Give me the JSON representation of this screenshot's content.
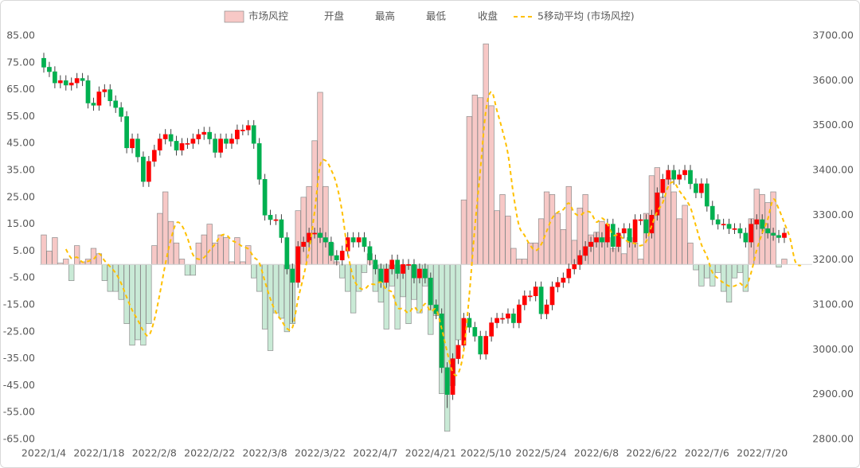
{
  "chart_data": {
    "type": "bar-candlestick",
    "categories": [
      "2022/1/4",
      null,
      null,
      null,
      null,
      null,
      null,
      null,
      null,
      null,
      "2022/1/18",
      null,
      null,
      null,
      null,
      null,
      null,
      null,
      null,
      null,
      "2022/2/8",
      null,
      null,
      null,
      null,
      null,
      null,
      null,
      null,
      null,
      "2022/2/22",
      null,
      null,
      null,
      null,
      null,
      null,
      null,
      null,
      null,
      "2022/3/8",
      null,
      null,
      null,
      null,
      null,
      null,
      null,
      null,
      null,
      "2022/3/22",
      null,
      null,
      null,
      null,
      null,
      null,
      null,
      null,
      null,
      "2022/4/7",
      null,
      null,
      null,
      null,
      null,
      null,
      null,
      null,
      null,
      "2022/4/21",
      null,
      null,
      null,
      null,
      null,
      null,
      null,
      null,
      null,
      "2022/5/10",
      null,
      null,
      null,
      null,
      null,
      null,
      null,
      null,
      null,
      "2022/5/24",
      null,
      null,
      null,
      null,
      null,
      null,
      null,
      null,
      null,
      "2022/6/8",
      null,
      null,
      null,
      null,
      null,
      null,
      null,
      null,
      null,
      "2022/6/22",
      null,
      null,
      null,
      null,
      null,
      null,
      null,
      null,
      null,
      "2022/7/6",
      null,
      null,
      null,
      null,
      null,
      null,
      null,
      null,
      null,
      "2022/7/20",
      null,
      null,
      null,
      null,
      null,
      null,
      null
    ],
    "series": [
      {
        "name": "市场风控",
        "type": "bar",
        "color": "#f7c8c6",
        "negative_color": "#c9ead6",
        "values": [
          11,
          5,
          10,
          0.5,
          2,
          -6,
          7,
          1,
          2,
          6,
          4,
          -6,
          -10,
          -10,
          -13,
          -22,
          -30,
          -28,
          -30,
          -22,
          7,
          19,
          27,
          16,
          8,
          2,
          -4,
          -4,
          8,
          11,
          15,
          8,
          11,
          10,
          1,
          10,
          1,
          7,
          -5,
          -10,
          -24,
          -32,
          -18,
          -20,
          -25,
          -22,
          20,
          25,
          29,
          46,
          64,
          29,
          8,
          1,
          -5,
          -10,
          -18,
          -10,
          -3,
          4,
          -10,
          -14,
          -24,
          -8,
          -24,
          -12,
          -22,
          -13,
          -18,
          -8,
          -26,
          -19,
          -48,
          -62,
          -45,
          -28,
          24,
          55,
          63,
          62,
          82,
          59,
          20,
          26,
          18,
          6,
          2,
          2,
          8,
          8,
          17,
          27,
          26,
          19,
          13,
          29,
          9,
          21,
          26,
          11,
          12,
          16,
          10,
          6,
          11,
          4,
          10,
          8,
          2,
          19,
          33,
          36,
          25,
          32,
          27,
          17,
          22,
          8,
          -2,
          -8,
          -5,
          -8,
          -3,
          -10,
          -14,
          -5,
          -3,
          -10,
          17,
          28,
          26,
          23,
          27,
          -1,
          2,
          null,
          null,
          null
        ]
      },
      {
        "name": "开盘",
        "axis": "y2",
        "values": [
          3650,
          3630,
          3620,
          3595,
          3600,
          3590,
          3595,
          3605,
          3600,
          3550,
          3545,
          3575,
          3580,
          3555,
          3540,
          3520,
          3450,
          3470,
          3430,
          3375,
          3420,
          3445,
          3470,
          3480,
          3465,
          3445,
          3460,
          3460,
          3470,
          3480,
          3485,
          3470,
          3440,
          3470,
          3460,
          3470,
          3490,
          3490,
          3500,
          3460,
          3380,
          3300,
          3290,
          3290,
          3250,
          3180,
          3150,
          3230,
          3240,
          3260,
          3260,
          3250,
          3240,
          3210,
          3200,
          3220,
          3250,
          3240,
          3250,
          3230,
          3200,
          3180,
          3150,
          3180,
          3200,
          3170,
          3190,
          3190,
          3160,
          3180,
          3160,
          3100,
          3080,
          2960,
          2900,
          2980,
          3010,
          3070,
          3050,
          3030,
          2990,
          3030,
          3060,
          3070,
          3070,
          3080,
          3060,
          3100,
          3120,
          3120,
          3140,
          3080,
          3100,
          3140,
          3150,
          3160,
          3180,
          3190,
          3210,
          3230,
          3240,
          3250,
          3240,
          3280,
          3230,
          3260,
          3270,
          3240,
          3290,
          3290,
          3260,
          3300,
          3350,
          3380,
          3400,
          3380,
          3390,
          3400,
          3370,
          3350,
          3370,
          3320,
          3290,
          3280,
          3280,
          3270,
          3270,
          3260,
          3240,
          3280,
          3290,
          3270,
          3260,
          3255,
          3250,
          null,
          null,
          null
        ]
      },
      {
        "name": "最高",
        "axis": "y2",
        "values": [
          3662,
          3642,
          3632,
          3612,
          3612,
          3607,
          3617,
          3617,
          3612,
          3562,
          3587,
          3592,
          3592,
          3567,
          3552,
          3532,
          3482,
          3482,
          3442,
          3432,
          3457,
          3482,
          3492,
          3492,
          3477,
          3472,
          3472,
          3482,
          3492,
          3497,
          3497,
          3482,
          3482,
          3482,
          3482,
          3502,
          3502,
          3512,
          3512,
          3472,
          3392,
          3312,
          3302,
          3302,
          3262,
          3192,
          3242,
          3252,
          3272,
          3272,
          3272,
          3262,
          3252,
          3222,
          3232,
          3262,
          3262,
          3262,
          3262,
          3242,
          3212,
          3192,
          3192,
          3212,
          3212,
          3202,
          3202,
          3202,
          3192,
          3192,
          3172,
          3112,
          3092,
          2972,
          2992,
          3022,
          3082,
          3082,
          3062,
          3042,
          3042,
          3072,
          3082,
          3082,
          3092,
          3092,
          3112,
          3132,
          3132,
          3152,
          3152,
          3112,
          3152,
          3162,
          3172,
          3192,
          3202,
          3222,
          3242,
          3252,
          3262,
          3262,
          3292,
          3292,
          3272,
          3282,
          3282,
          3302,
          3302,
          3302,
          3312,
          3362,
          3392,
          3412,
          3412,
          3402,
          3412,
          3412,
          3382,
          3382,
          3382,
          3332,
          3302,
          3292,
          3292,
          3282,
          3282,
          3272,
          3292,
          3302,
          3302,
          3282,
          3272,
          3267,
          3272,
          null,
          null,
          null
        ]
      },
      {
        "name": "最低",
        "axis": "y2",
        "values": [
          3618,
          3608,
          3583,
          3583,
          3578,
          3578,
          3583,
          3588,
          3538,
          3533,
          3533,
          3563,
          3543,
          3528,
          3508,
          3438,
          3438,
          3418,
          3363,
          3363,
          3408,
          3433,
          3458,
          3453,
          3433,
          3433,
          3448,
          3448,
          3458,
          3468,
          3458,
          3428,
          3428,
          3448,
          3448,
          3458,
          3478,
          3478,
          3448,
          3368,
          3288,
          3278,
          3278,
          3238,
          3168,
          3060,
          3138,
          3218,
          3228,
          3248,
          3238,
          3228,
          3198,
          3188,
          3188,
          3208,
          3228,
          3228,
          3218,
          3188,
          3168,
          3138,
          3138,
          3168,
          3158,
          3158,
          3178,
          3148,
          3148,
          3148,
          3088,
          3068,
          2948,
          2870,
          2888,
          2968,
          2998,
          3038,
          3018,
          2978,
          2978,
          3018,
          3048,
          3058,
          3058,
          3048,
          3048,
          3088,
          3108,
          3108,
          3068,
          3068,
          3088,
          3128,
          3138,
          3148,
          3168,
          3178,
          3198,
          3218,
          3228,
          3228,
          3228,
          3218,
          3218,
          3248,
          3228,
          3228,
          3278,
          3248,
          3248,
          3288,
          3338,
          3368,
          3368,
          3368,
          3378,
          3358,
          3338,
          3338,
          3308,
          3278,
          3268,
          3268,
          3258,
          3258,
          3248,
          3228,
          3228,
          3268,
          3258,
          3248,
          3243,
          3238,
          3238,
          null,
          null,
          null
        ]
      },
      {
        "name": "收盘",
        "axis": "y2",
        "values": [
          3630,
          3620,
          3595,
          3600,
          3590,
          3595,
          3605,
          3600,
          3550,
          3545,
          3575,
          3580,
          3555,
          3540,
          3520,
          3450,
          3470,
          3430,
          3375,
          3420,
          3445,
          3470,
          3480,
          3465,
          3445,
          3460,
          3460,
          3470,
          3480,
          3485,
          3470,
          3440,
          3470,
          3460,
          3470,
          3490,
          3490,
          3500,
          3460,
          3380,
          3300,
          3290,
          3290,
          3250,
          3180,
          3150,
          3230,
          3240,
          3260,
          3260,
          3250,
          3240,
          3210,
          3200,
          3220,
          3250,
          3240,
          3250,
          3230,
          3200,
          3180,
          3150,
          3180,
          3200,
          3170,
          3190,
          3190,
          3160,
          3180,
          3160,
          3100,
          3080,
          2960,
          2900,
          2980,
          3010,
          3070,
          3050,
          3030,
          2990,
          3030,
          3060,
          3070,
          3070,
          3080,
          3060,
          3100,
          3120,
          3120,
          3140,
          3080,
          3100,
          3140,
          3150,
          3160,
          3180,
          3190,
          3210,
          3230,
          3240,
          3250,
          3240,
          3280,
          3230,
          3260,
          3270,
          3240,
          3290,
          3290,
          3260,
          3300,
          3350,
          3380,
          3400,
          3380,
          3390,
          3400,
          3370,
          3350,
          3370,
          3320,
          3290,
          3280,
          3280,
          3270,
          3270,
          3260,
          3240,
          3280,
          3290,
          3270,
          3260,
          3255,
          3250,
          3260,
          null,
          null,
          null
        ]
      },
      {
        "name": "5移动平均 (市场风控)",
        "type": "line",
        "color": "#ffc000",
        "line_style": "dashed",
        "values": [
          null,
          null,
          null,
          null,
          5.7,
          2.3,
          2.7,
          0.9,
          1.2,
          2,
          4,
          1.4,
          -0.8,
          -3.2,
          -7,
          -12.2,
          -17,
          -20.6,
          -24.6,
          -26.4,
          -20.6,
          -10.8,
          0.2,
          9.4,
          15.4,
          14.4,
          9.8,
          3.6,
          2,
          2.6,
          5.2,
          7.6,
          10.6,
          11,
          9,
          8,
          6.6,
          5.8,
          2.8,
          0.6,
          -6.2,
          -12.8,
          -17.8,
          -20.8,
          -23.8,
          -23.4,
          -13,
          -4.4,
          5.4,
          19.6,
          36.8,
          38.6,
          35.2,
          29.6,
          19.4,
          4.6,
          -4.8,
          -8.4,
          -9.2,
          -7.4,
          -7.4,
          -6.6,
          -9.4,
          -10.4,
          -16,
          -16.4,
          -18,
          -15.8,
          -17.8,
          -14.6,
          -17.4,
          -16.8,
          -23.8,
          -32.6,
          -40,
          -40.4,
          -31.8,
          -11.2,
          13.8,
          35.2,
          57.2,
          64.2,
          57.2,
          49.8,
          41,
          25.8,
          14.4,
          10.8,
          7.2,
          5.2,
          7.4,
          12.4,
          17.2,
          19.4,
          20.4,
          22.8,
          19.2,
          18.2,
          19.6,
          19.2,
          15.8,
          17.2,
          15,
          11,
          11,
          9.4,
          8.2,
          7.8,
          7,
          8.6,
          14.4,
          19.6,
          23,
          29,
          30.6,
          27.4,
          24.6,
          21.2,
          14.4,
          7.4,
          3,
          -3,
          -5.2,
          -6.8,
          -8,
          -8,
          -7,
          -8.4,
          -3,
          5.4,
          11.6,
          16.8,
          24.2,
          20.6,
          15.4,
          10,
          1,
          -0.5
        ]
      }
    ],
    "up_color": "#ff0000",
    "down_color": "#00b050",
    "ylim": [
      -65,
      85
    ],
    "yticks": [
      {
        "value": 85,
        "label": "85.00"
      },
      {
        "value": 75,
        "label": "75.00"
      },
      {
        "value": 65,
        "label": "65.00"
      },
      {
        "value": 55,
        "label": "55.00"
      },
      {
        "value": 45,
        "label": "45.00"
      },
      {
        "value": 35,
        "label": "35.00"
      },
      {
        "value": 25,
        "label": "25.00"
      },
      {
        "value": 15,
        "label": "15.00"
      },
      {
        "value": 5,
        "label": "5.00"
      },
      {
        "value": -5,
        "label": "-5.00"
      },
      {
        "value": -15,
        "label": "-15.00"
      },
      {
        "value": -25,
        "label": "-25.00"
      },
      {
        "value": -35,
        "label": "-35.00"
      },
      {
        "value": -45,
        "label": "-45.00"
      },
      {
        "value": -55,
        "label": "-55.00"
      },
      {
        "value": -65,
        "label": "-65.00"
      }
    ],
    "y2lim": [
      2800,
      3700
    ],
    "y2ticks": [
      {
        "value": 3700,
        "label": "3700.00"
      },
      {
        "value": 3600,
        "label": "3600.00"
      },
      {
        "value": 3500,
        "label": "3500.00"
      },
      {
        "value": 3400,
        "label": "3400.00"
      },
      {
        "value": 3300,
        "label": "3300.00"
      },
      {
        "value": 3200,
        "label": "3200.00"
      },
      {
        "value": 3100,
        "label": "3100.00"
      },
      {
        "value": 3000,
        "label": "3000.00"
      },
      {
        "value": 2900,
        "label": "2900.00"
      },
      {
        "value": 2800,
        "label": "2800.00"
      }
    ],
    "legend": "top",
    "grid": false
  }
}
